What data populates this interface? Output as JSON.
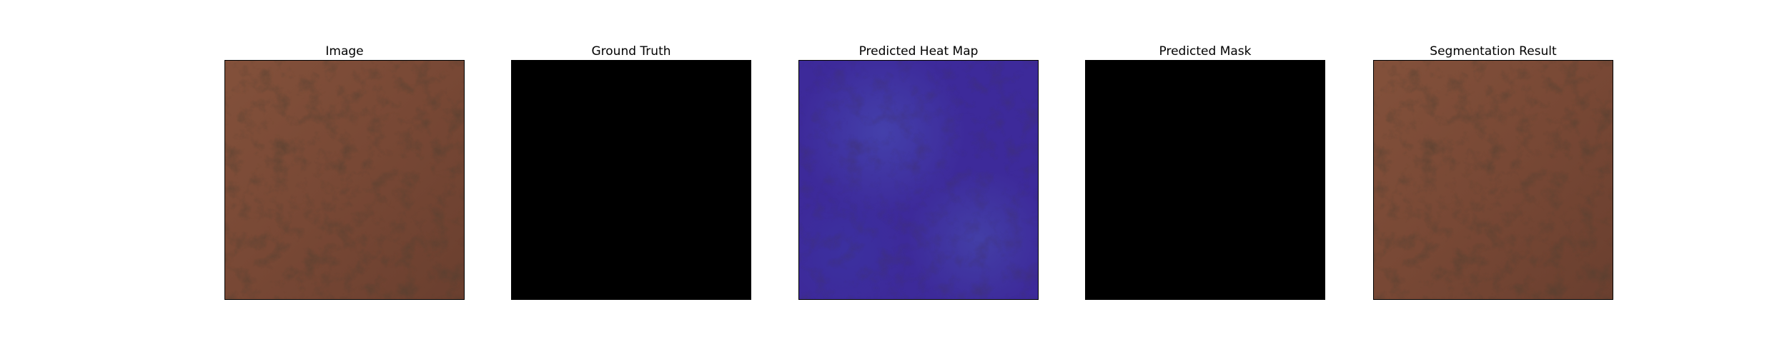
{
  "figure": {
    "panels": [
      {
        "title": "Image",
        "kind": "leather-texture",
        "base_color": "#7a4a36"
      },
      {
        "title": "Ground Truth",
        "kind": "solid-mask",
        "base_color": "#000000"
      },
      {
        "title": "Predicted Heat Map",
        "kind": "heatmap-overlay",
        "base_color": "#3f2c9c"
      },
      {
        "title": "Predicted Mask",
        "kind": "solid-mask",
        "base_color": "#000000"
      },
      {
        "title": "Segmentation Result",
        "kind": "leather-texture",
        "base_color": "#7a4a36"
      }
    ]
  }
}
